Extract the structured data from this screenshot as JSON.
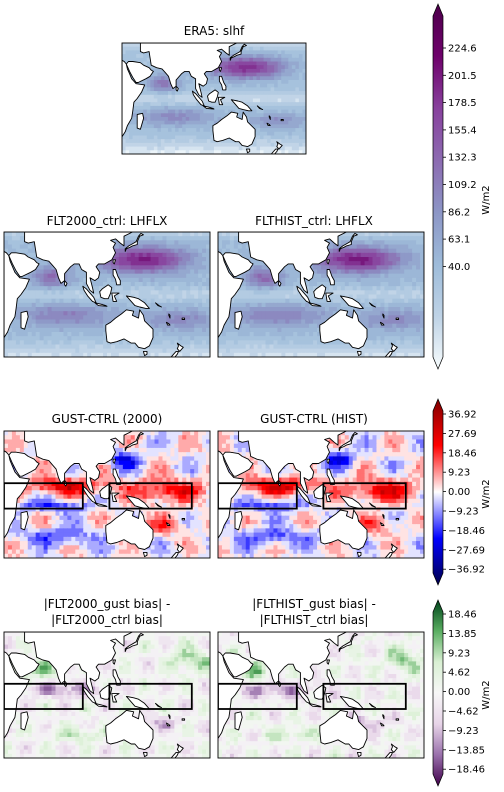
{
  "chart_data": {
    "type": "heatmap",
    "panels": [
      {
        "title": "ERA5: slhf",
        "colorbar": "lhflx",
        "kind": "field"
      },
      {
        "title": "FLT2000_ctrl: LHFLX",
        "colorbar": "lhflx",
        "kind": "field"
      },
      {
        "title": "FLTHIST_ctrl: LHFLX",
        "colorbar": "lhflx",
        "kind": "field"
      },
      {
        "title": "GUST-CTRL (2000)",
        "colorbar": "diff",
        "kind": "diff",
        "has_boxes": true
      },
      {
        "title": "GUST-CTRL (HIST)",
        "colorbar": "diff",
        "kind": "diff",
        "has_boxes": true
      },
      {
        "title_lines": [
          "|FLT2000_gust bias| -",
          "|FLT2000_ctrl bias|"
        ],
        "colorbar": "bias",
        "kind": "bias",
        "has_boxes": true
      },
      {
        "title_lines": [
          "|FLTHIST_gust bias| -",
          "|FLTHIST_ctrl bias|"
        ],
        "colorbar": "bias",
        "kind": "bias",
        "has_boxes": true
      }
    ],
    "colorbars": {
      "lhflx": {
        "label": "W/m2",
        "ticks": [
          "224.6",
          "201.5",
          "178.5",
          "155.4",
          "132.3",
          "109.2",
          "86.2",
          "63.1",
          "40.0"
        ],
        "range": [
          40.0,
          247.7
        ],
        "colors": [
          "#f7fcfd",
          "#bfd3e6",
          "#9ebcda",
          "#8c96c6",
          "#8c6bb1",
          "#88419d",
          "#6e016b",
          "#4d004b"
        ]
      },
      "diff": {
        "label": "W/m2",
        "ticks": [
          "36.92",
          "27.69",
          "18.46",
          "9.23",
          "0.00",
          "−9.23",
          "−18.46",
          "−27.69",
          "−36.92"
        ],
        "range": [
          -36.92,
          36.92
        ],
        "colors": [
          "#00004c",
          "#0000ff",
          "#ffffff",
          "#ff0000",
          "#7f0000"
        ]
      },
      "bias": {
        "label": "W/m2",
        "ticks": [
          "18.46",
          "13.85",
          "9.23",
          "4.62",
          "0.00",
          "−4.62",
          "−9.23",
          "−13.85",
          "−18.46"
        ],
        "range": [
          -18.46,
          18.46
        ],
        "colors": [
          "#40004b",
          "#9970ab",
          "#e7d4e8",
          "#f7f7f7",
          "#d9f0d3",
          "#5aae61",
          "#00441b"
        ]
      }
    }
  }
}
